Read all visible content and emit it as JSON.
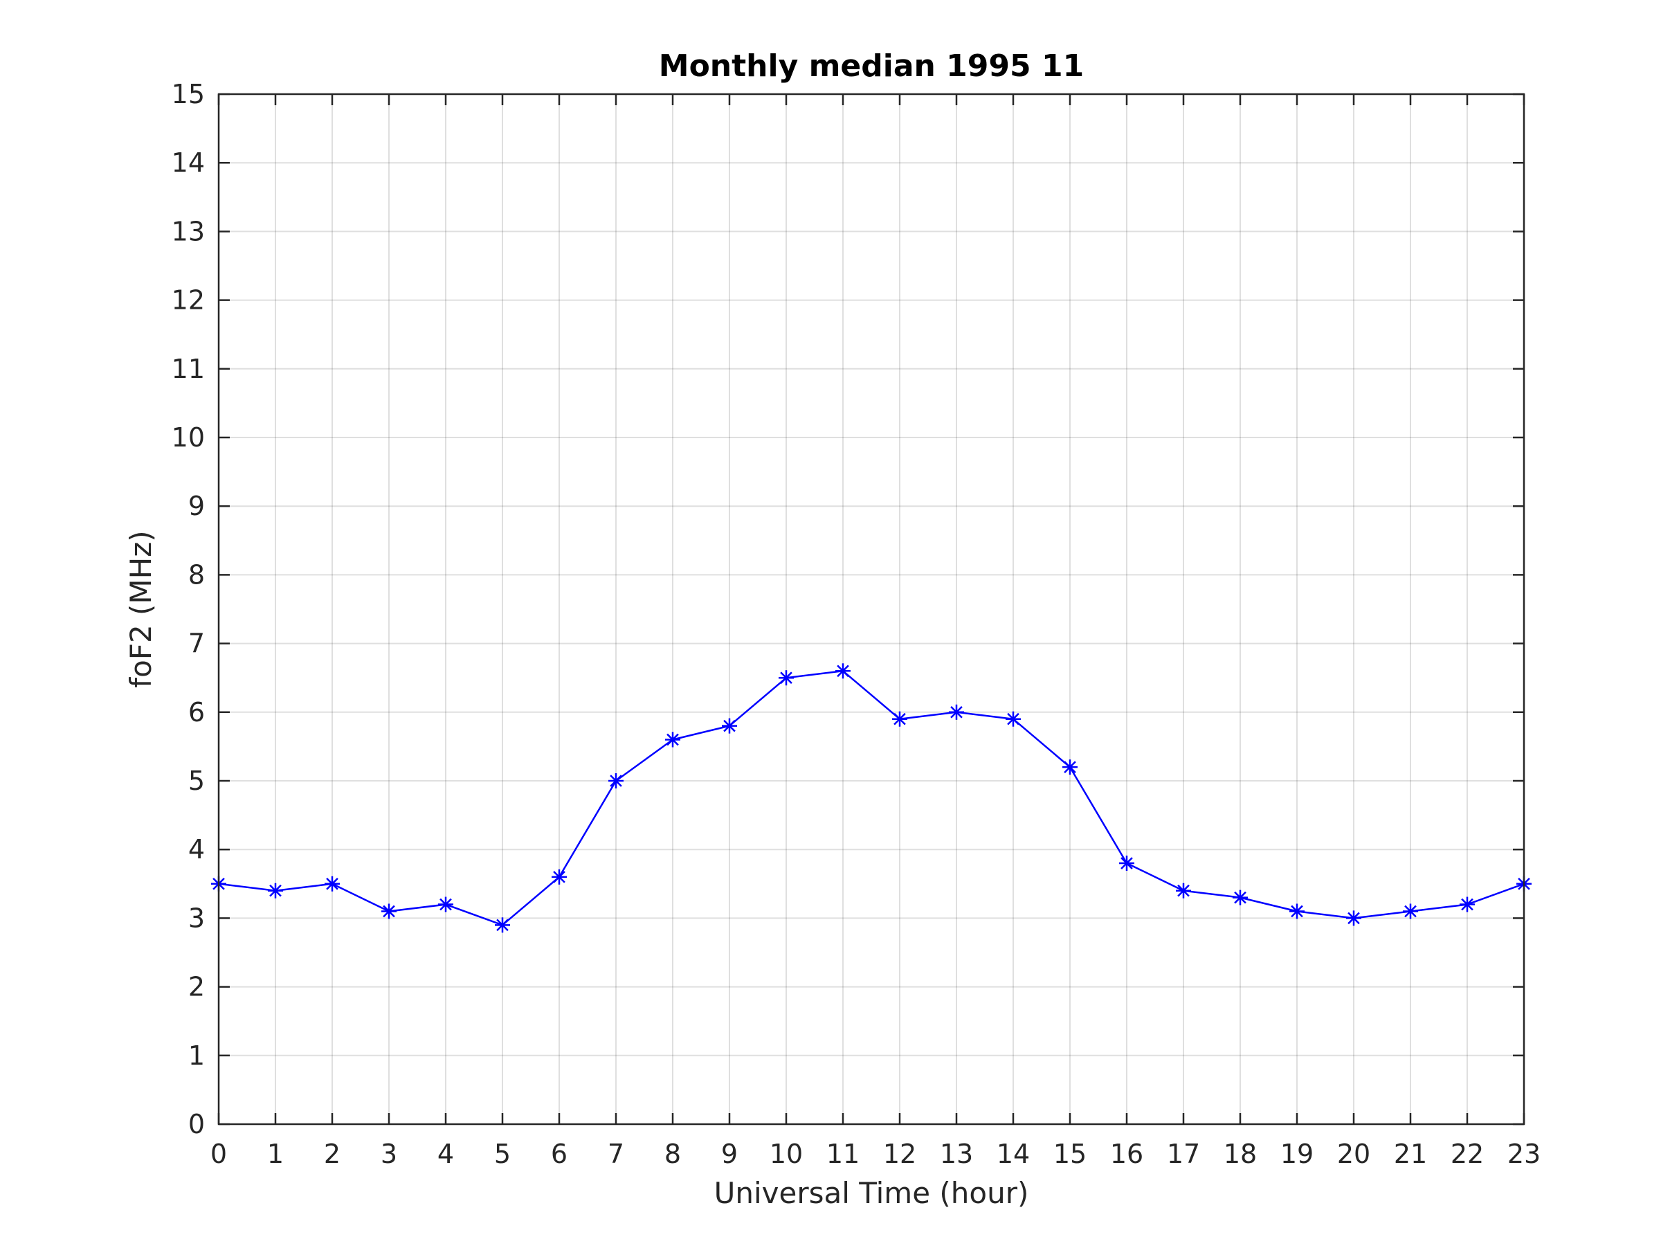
{
  "chart_data": {
    "type": "line",
    "title": "Monthly median 1995 11",
    "xlabel": "Universal Time (hour)",
    "ylabel": "foF2 (MHz)",
    "xlim": [
      0,
      23
    ],
    "ylim": [
      0,
      15
    ],
    "x_ticks": [
      0,
      1,
      2,
      3,
      4,
      5,
      6,
      7,
      8,
      9,
      10,
      11,
      12,
      13,
      14,
      15,
      16,
      17,
      18,
      19,
      20,
      21,
      22,
      23
    ],
    "y_ticks": [
      0,
      1,
      2,
      3,
      4,
      5,
      6,
      7,
      8,
      9,
      10,
      11,
      12,
      13,
      14,
      15
    ],
    "grid": true,
    "marker": "asterisk",
    "series": [
      {
        "color": "#0000ff",
        "x": [
          0,
          1,
          2,
          3,
          4,
          5,
          6,
          7,
          8,
          9,
          10,
          11,
          12,
          13,
          14,
          15,
          16,
          17,
          18,
          19,
          20,
          21,
          22,
          23
        ],
        "values": [
          3.5,
          3.4,
          3.5,
          3.1,
          3.2,
          2.9,
          3.6,
          5.0,
          5.6,
          5.8,
          6.5,
          6.6,
          5.9,
          6.0,
          5.9,
          5.2,
          3.8,
          3.4,
          3.3,
          3.1,
          3.0,
          3.1,
          3.2,
          3.5
        ]
      }
    ]
  }
}
